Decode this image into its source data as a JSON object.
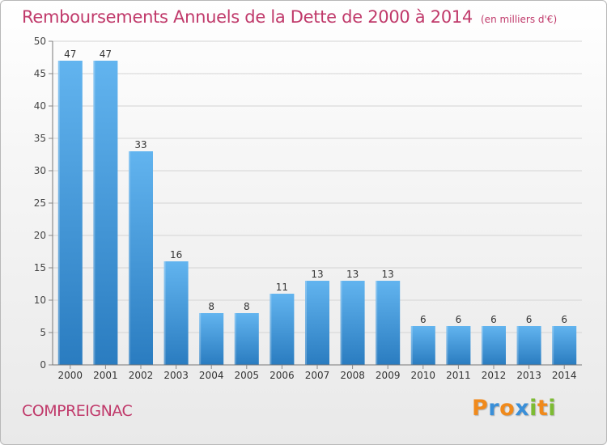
{
  "chart_data": {
    "type": "bar",
    "title": "Remboursements Annuels de la Dette de 2000 à 2014",
    "unit": "(en milliers d'€)",
    "categories": [
      "2000",
      "2001",
      "2002",
      "2003",
      "2004",
      "2005",
      "2006",
      "2007",
      "2008",
      "2009",
      "2010",
      "2011",
      "2012",
      "2013",
      "2014"
    ],
    "values": [
      47,
      47,
      33,
      16,
      8,
      8,
      11,
      13,
      13,
      13,
      6,
      6,
      6,
      6,
      6
    ],
    "ylim": [
      0,
      50
    ],
    "yticks": [
      0,
      5,
      10,
      15,
      20,
      25,
      30,
      35,
      40,
      45,
      50
    ],
    "grid": true,
    "data_labels": true,
    "xlabel": "",
    "ylabel": ""
  },
  "location": "COMPREIGNAC",
  "brand": {
    "letters": [
      "P",
      "r",
      "o",
      "x",
      "i",
      "t",
      "i"
    ],
    "colors": [
      "#f08a1c",
      "#3a8fd8",
      "#f08a1c",
      "#3a8fd8",
      "#7dbb33",
      "#f08a1c",
      "#7dbb33"
    ]
  },
  "colors": {
    "bar_top": "#62b4ef",
    "bar_bottom": "#2a7cc0",
    "accent_text": "#c0396a",
    "grid": "#d4d4d4"
  }
}
